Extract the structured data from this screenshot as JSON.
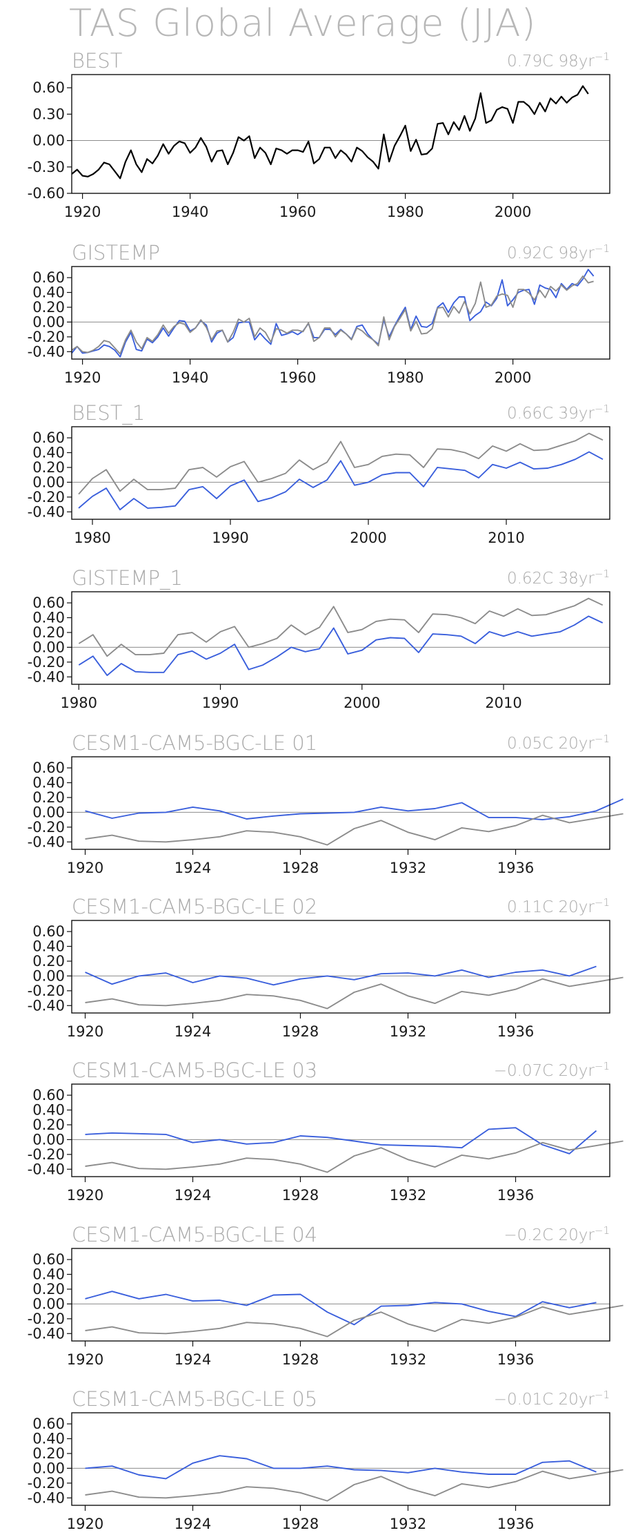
{
  "figure": {
    "title": "TAS Global Average (JJA)"
  },
  "colors": {
    "observed": "#000000",
    "reference": "#8c8c8c",
    "model": "#3a5fdc",
    "frame": "#111111",
    "text": "#a9a9a9"
  },
  "chart_data": [
    {
      "type": "line",
      "title": "BEST",
      "trend": "0.79C 98yr",
      "trend_exponent": "−1",
      "xlim": [
        1918,
        2018
      ],
      "ylim": [
        -0.6,
        0.75
      ],
      "x_ticks": [
        1920,
        1940,
        1960,
        1980,
        2000
      ],
      "y_ticks": [
        "0.60",
        "0.30",
        "0.00",
        "-0.30",
        "-0.60"
      ],
      "y_tick_values": [
        0.6,
        0.3,
        0.0,
        -0.3,
        -0.6
      ],
      "x_start": 1918,
      "series": [
        {
          "role": "observed",
          "values": [
            -0.38,
            -0.33,
            -0.4,
            -0.41,
            -0.38,
            -0.33,
            -0.25,
            -0.27,
            -0.35,
            -0.43,
            -0.24,
            -0.11,
            -0.27,
            -0.36,
            -0.21,
            -0.26,
            -0.17,
            -0.04,
            -0.15,
            -0.06,
            -0.01,
            -0.03,
            -0.14,
            -0.08,
            0.03,
            -0.07,
            -0.24,
            -0.12,
            -0.11,
            -0.27,
            -0.14,
            0.04,
            0.0,
            0.05,
            -0.2,
            -0.08,
            -0.14,
            -0.27,
            -0.09,
            -0.11,
            -0.15,
            -0.11,
            -0.11,
            -0.13,
            -0.01,
            -0.26,
            -0.21,
            -0.08,
            -0.08,
            -0.2,
            -0.11,
            -0.16,
            -0.24,
            -0.08,
            -0.12,
            -0.19,
            -0.24,
            -0.32,
            0.07,
            -0.24,
            -0.06,
            0.05,
            0.17,
            -0.12,
            0.01,
            -0.16,
            -0.15,
            -0.09,
            0.19,
            0.2,
            0.07,
            0.21,
            0.12,
            0.28,
            0.11,
            0.25,
            0.54,
            0.2,
            0.23,
            0.35,
            0.38,
            0.36,
            0.2,
            0.44,
            0.44,
            0.39,
            0.3,
            0.43,
            0.33,
            0.48,
            0.42,
            0.5,
            0.43,
            0.49,
            0.52,
            0.62,
            0.53
          ]
        }
      ]
    },
    {
      "type": "line",
      "title": "GISTEMP",
      "trend": "0.92C 98yr",
      "trend_exponent": "−1",
      "xlim": [
        1918,
        2018
      ],
      "ylim": [
        -0.5,
        0.75
      ],
      "x_ticks": [
        1920,
        1940,
        1960,
        1980,
        2000
      ],
      "y_ticks": [
        "0.60",
        "0.40",
        "0.20",
        "0.00",
        "-0.20",
        "-0.40"
      ],
      "y_tick_values": [
        0.6,
        0.4,
        0.2,
        0.0,
        -0.2,
        -0.4
      ],
      "x_start": 1918,
      "series": [
        {
          "role": "model",
          "values": [
            -0.42,
            -0.33,
            -0.42,
            -0.41,
            -0.39,
            -0.37,
            -0.31,
            -0.33,
            -0.38,
            -0.47,
            -0.27,
            -0.14,
            -0.37,
            -0.39,
            -0.23,
            -0.28,
            -0.2,
            -0.08,
            -0.19,
            -0.08,
            0.02,
            0.01,
            -0.12,
            -0.08,
            0.02,
            -0.04,
            -0.27,
            -0.15,
            -0.11,
            -0.27,
            -0.21,
            -0.01,
            0.0,
            0.0,
            -0.24,
            -0.15,
            -0.23,
            -0.3,
            -0.02,
            -0.18,
            -0.16,
            -0.13,
            -0.17,
            -0.12,
            -0.02,
            -0.21,
            -0.21,
            -0.1,
            -0.1,
            -0.17,
            -0.1,
            -0.16,
            -0.23,
            -0.06,
            -0.04,
            -0.16,
            -0.24,
            -0.3,
            0.03,
            -0.2,
            -0.05,
            0.08,
            0.2,
            -0.1,
            0.08,
            -0.06,
            -0.07,
            -0.02,
            0.2,
            0.26,
            0.13,
            0.26,
            0.34,
            0.34,
            0.02,
            0.09,
            0.14,
            0.27,
            0.22,
            0.32,
            0.57,
            0.22,
            0.3,
            0.4,
            0.43,
            0.44,
            0.24,
            0.5,
            0.46,
            0.44,
            0.33,
            0.52,
            0.44,
            0.52,
            0.49,
            0.58,
            0.71,
            0.62
          ]
        },
        {
          "role": "reference",
          "values": [
            -0.38,
            -0.33,
            -0.4,
            -0.41,
            -0.38,
            -0.33,
            -0.25,
            -0.27,
            -0.35,
            -0.43,
            -0.24,
            -0.11,
            -0.27,
            -0.36,
            -0.21,
            -0.26,
            -0.17,
            -0.04,
            -0.15,
            -0.06,
            -0.01,
            -0.03,
            -0.14,
            -0.08,
            0.03,
            -0.07,
            -0.24,
            -0.12,
            -0.11,
            -0.27,
            -0.14,
            0.04,
            0.0,
            0.05,
            -0.2,
            -0.08,
            -0.14,
            -0.27,
            -0.09,
            -0.11,
            -0.15,
            -0.11,
            -0.11,
            -0.13,
            -0.01,
            -0.26,
            -0.21,
            -0.08,
            -0.08,
            -0.2,
            -0.11,
            -0.16,
            -0.24,
            -0.08,
            -0.12,
            -0.19,
            -0.24,
            -0.32,
            0.07,
            -0.24,
            -0.06,
            0.05,
            0.17,
            -0.12,
            0.01,
            -0.16,
            -0.15,
            -0.09,
            0.19,
            0.2,
            0.07,
            0.21,
            0.12,
            0.28,
            0.11,
            0.25,
            0.54,
            0.2,
            0.23,
            0.35,
            0.38,
            0.36,
            0.2,
            0.44,
            0.44,
            0.39,
            0.3,
            0.43,
            0.33,
            0.48,
            0.42,
            0.5,
            0.43,
            0.49,
            0.52,
            0.62,
            0.53,
            0.55
          ]
        }
      ]
    },
    {
      "type": "line",
      "title": "BEST_1",
      "trend": "0.66C 39yr",
      "trend_exponent": "−1",
      "xlim": [
        1978.5,
        2017.5
      ],
      "ylim": [
        -0.5,
        0.75
      ],
      "x_ticks": [
        1980,
        1990,
        2000,
        2010
      ],
      "y_ticks": [
        "0.60",
        "0.40",
        "0.20",
        "0.00",
        "-0.20",
        "-0.40"
      ],
      "y_tick_values": [
        0.6,
        0.4,
        0.2,
        0.0,
        -0.2,
        -0.4
      ],
      "x_start": 1979,
      "series": [
        {
          "role": "reference",
          "values": [
            -0.16,
            0.05,
            0.17,
            -0.12,
            0.04,
            -0.1,
            -0.1,
            -0.08,
            0.17,
            0.2,
            0.07,
            0.21,
            0.28,
            0.0,
            0.05,
            0.12,
            0.3,
            0.17,
            0.27,
            0.55,
            0.2,
            0.24,
            0.35,
            0.38,
            0.37,
            0.2,
            0.45,
            0.44,
            0.4,
            0.32,
            0.49,
            0.42,
            0.52,
            0.43,
            0.44,
            0.5,
            0.56,
            0.66,
            0.57
          ]
        },
        {
          "role": "model",
          "values": [
            -0.35,
            -0.19,
            -0.08,
            -0.37,
            -0.22,
            -0.35,
            -0.34,
            -0.32,
            -0.1,
            -0.06,
            -0.22,
            -0.05,
            0.03,
            -0.26,
            -0.21,
            -0.13,
            0.04,
            -0.07,
            0.03,
            0.29,
            -0.04,
            0.0,
            0.1,
            0.13,
            0.13,
            -0.06,
            0.2,
            0.18,
            0.16,
            0.06,
            0.24,
            0.19,
            0.27,
            0.18,
            0.19,
            0.24,
            0.31,
            0.41,
            0.31
          ]
        }
      ]
    },
    {
      "type": "line",
      "title": "GISTEMP_1",
      "trend": "0.62C 38yr",
      "trend_exponent": "−1",
      "xlim": [
        1979.5,
        2017.5
      ],
      "ylim": [
        -0.5,
        0.75
      ],
      "x_ticks": [
        1980,
        1990,
        2000,
        2010
      ],
      "y_ticks": [
        "0.60",
        "0.40",
        "0.20",
        "0.00",
        "-0.20",
        "-0.40"
      ],
      "y_tick_values": [
        0.6,
        0.4,
        0.2,
        0.0,
        -0.2,
        -0.4
      ],
      "x_start": 1980,
      "series": [
        {
          "role": "reference",
          "values": [
            0.05,
            0.17,
            -0.12,
            0.04,
            -0.1,
            -0.1,
            -0.08,
            0.17,
            0.2,
            0.07,
            0.21,
            0.28,
            0.0,
            0.05,
            0.12,
            0.3,
            0.17,
            0.27,
            0.55,
            0.2,
            0.24,
            0.35,
            0.38,
            0.37,
            0.2,
            0.45,
            0.44,
            0.4,
            0.32,
            0.49,
            0.42,
            0.52,
            0.43,
            0.44,
            0.5,
            0.56,
            0.66,
            0.57
          ]
        },
        {
          "role": "model",
          "values": [
            -0.24,
            -0.12,
            -0.38,
            -0.22,
            -0.33,
            -0.34,
            -0.34,
            -0.1,
            -0.05,
            -0.16,
            -0.08,
            0.04,
            -0.3,
            -0.24,
            -0.13,
            0.0,
            -0.06,
            -0.02,
            0.26,
            -0.09,
            -0.04,
            0.1,
            0.13,
            0.12,
            -0.07,
            0.18,
            0.17,
            0.15,
            0.05,
            0.21,
            0.15,
            0.21,
            0.15,
            0.18,
            0.21,
            0.3,
            0.42,
            0.33
          ]
        }
      ]
    },
    {
      "type": "line",
      "title": "CESM1-CAM5-BGC-LE 01",
      "trend": "0.05C 20yr",
      "trend_exponent": "−1",
      "xlim": [
        1919.5,
        1939.5
      ],
      "ylim": [
        -0.5,
        0.75
      ],
      "x_ticks": [
        1920,
        1924,
        1928,
        1932,
        1936
      ],
      "y_ticks": [
        "0.60",
        "0.40",
        "0.20",
        "0.00",
        "-0.20",
        "-0.40"
      ],
      "y_tick_values": [
        0.6,
        0.4,
        0.2,
        0.0,
        -0.2,
        -0.4
      ],
      "x_start": 1920,
      "series": [
        {
          "role": "model",
          "values": [
            0.02,
            -0.08,
            -0.01,
            0.0,
            0.07,
            0.02,
            -0.09,
            -0.05,
            -0.02,
            -0.01,
            0.0,
            0.07,
            0.02,
            0.05,
            0.13,
            -0.07,
            -0.07,
            -0.1,
            -0.06,
            0.02,
            0.18
          ]
        },
        {
          "role": "reference",
          "values": [
            -0.36,
            -0.31,
            -0.39,
            -0.4,
            -0.37,
            -0.33,
            -0.25,
            -0.27,
            -0.33,
            -0.44,
            -0.22,
            -0.11,
            -0.27,
            -0.37,
            -0.21,
            -0.26,
            -0.18,
            -0.04,
            -0.14,
            -0.08,
            -0.02
          ]
        }
      ]
    },
    {
      "type": "line",
      "title": "CESM1-CAM5-BGC-LE 02",
      "trend": "0.11C 20yr",
      "trend_exponent": "−1",
      "xlim": [
        1919.5,
        1939.5
      ],
      "ylim": [
        -0.5,
        0.75
      ],
      "x_ticks": [
        1920,
        1924,
        1928,
        1932,
        1936
      ],
      "y_ticks": [
        "0.60",
        "0.40",
        "0.20",
        "0.00",
        "-0.20",
        "-0.40"
      ],
      "y_tick_values": [
        0.6,
        0.4,
        0.2,
        0.0,
        -0.2,
        -0.4
      ],
      "x_start": 1920,
      "series": [
        {
          "role": "model",
          "values": [
            0.05,
            -0.11,
            0.0,
            0.04,
            -0.09,
            0.0,
            -0.03,
            -0.12,
            -0.04,
            0.0,
            -0.05,
            0.03,
            0.04,
            0.0,
            0.08,
            -0.02,
            0.05,
            0.08,
            0.0,
            0.13
          ]
        },
        {
          "role": "reference",
          "values": [
            -0.36,
            -0.31,
            -0.39,
            -0.4,
            -0.37,
            -0.33,
            -0.25,
            -0.27,
            -0.33,
            -0.44,
            -0.22,
            -0.11,
            -0.27,
            -0.37,
            -0.21,
            -0.26,
            -0.18,
            -0.04,
            -0.14,
            -0.08,
            -0.02
          ]
        }
      ]
    },
    {
      "type": "line",
      "title": "CESM1-CAM5-BGC-LE 03",
      "trend": "−0.07C 20yr",
      "trend_exponent": "−1",
      "xlim": [
        1919.5,
        1939.5
      ],
      "ylim": [
        -0.5,
        0.75
      ],
      "x_ticks": [
        1920,
        1924,
        1928,
        1932,
        1936
      ],
      "y_ticks": [
        "0.60",
        "0.40",
        "0.20",
        "0.00",
        "-0.20",
        "-0.40"
      ],
      "y_tick_values": [
        0.6,
        0.4,
        0.2,
        0.0,
        -0.2,
        -0.4
      ],
      "x_start": 1920,
      "series": [
        {
          "role": "model",
          "values": [
            0.07,
            0.09,
            0.08,
            0.07,
            -0.04,
            0.0,
            -0.06,
            -0.04,
            0.05,
            0.03,
            -0.02,
            -0.07,
            -0.08,
            -0.09,
            -0.11,
            0.14,
            0.16,
            -0.07,
            -0.19,
            0.12
          ]
        },
        {
          "role": "reference",
          "values": [
            -0.36,
            -0.31,
            -0.39,
            -0.4,
            -0.37,
            -0.33,
            -0.25,
            -0.27,
            -0.33,
            -0.44,
            -0.22,
            -0.11,
            -0.27,
            -0.37,
            -0.21,
            -0.26,
            -0.18,
            -0.04,
            -0.14,
            -0.08,
            -0.02
          ]
        }
      ]
    },
    {
      "type": "line",
      "title": "CESM1-CAM5-BGC-LE 04",
      "trend": "−0.2C 20yr",
      "trend_exponent": "−1",
      "xlim": [
        1919.5,
        1939.5
      ],
      "ylim": [
        -0.5,
        0.75
      ],
      "x_ticks": [
        1920,
        1924,
        1928,
        1932,
        1936
      ],
      "y_ticks": [
        "0.60",
        "0.40",
        "0.20",
        "0.00",
        "-0.20",
        "-0.40"
      ],
      "y_tick_values": [
        0.6,
        0.4,
        0.2,
        0.0,
        -0.2,
        -0.4
      ],
      "x_start": 1920,
      "series": [
        {
          "role": "model",
          "values": [
            0.07,
            0.17,
            0.07,
            0.13,
            0.04,
            0.05,
            -0.02,
            0.12,
            0.13,
            -0.11,
            -0.28,
            -0.03,
            -0.02,
            0.02,
            0.0,
            -0.1,
            -0.17,
            0.03,
            -0.05,
            0.02
          ]
        },
        {
          "role": "reference",
          "values": [
            -0.36,
            -0.31,
            -0.39,
            -0.4,
            -0.37,
            -0.33,
            -0.25,
            -0.27,
            -0.33,
            -0.44,
            -0.22,
            -0.11,
            -0.27,
            -0.37,
            -0.21,
            -0.26,
            -0.18,
            -0.04,
            -0.14,
            -0.08,
            -0.02
          ]
        }
      ]
    },
    {
      "type": "line",
      "title": "CESM1-CAM5-BGC-LE 05",
      "trend": "−0.01C 20yr",
      "trend_exponent": "−1",
      "xlim": [
        1919.5,
        1939.5
      ],
      "ylim": [
        -0.5,
        0.75
      ],
      "x_ticks": [
        1920,
        1924,
        1928,
        1932,
        1936
      ],
      "y_ticks": [
        "0.60",
        "0.40",
        "0.20",
        "0.00",
        "-0.20",
        "-0.40"
      ],
      "y_tick_values": [
        0.6,
        0.4,
        0.2,
        0.0,
        -0.2,
        -0.4
      ],
      "x_start": 1920,
      "series": [
        {
          "role": "model",
          "values": [
            0.0,
            0.03,
            -0.09,
            -0.14,
            0.07,
            0.17,
            0.13,
            0.0,
            0.0,
            0.03,
            -0.02,
            -0.03,
            -0.06,
            0.0,
            -0.05,
            -0.08,
            -0.08,
            0.08,
            0.1,
            -0.05
          ]
        },
        {
          "role": "reference",
          "values": [
            -0.36,
            -0.31,
            -0.39,
            -0.4,
            -0.37,
            -0.33,
            -0.25,
            -0.27,
            -0.33,
            -0.44,
            -0.22,
            -0.11,
            -0.27,
            -0.37,
            -0.21,
            -0.26,
            -0.18,
            -0.04,
            -0.14,
            -0.08,
            -0.02
          ]
        }
      ]
    }
  ]
}
